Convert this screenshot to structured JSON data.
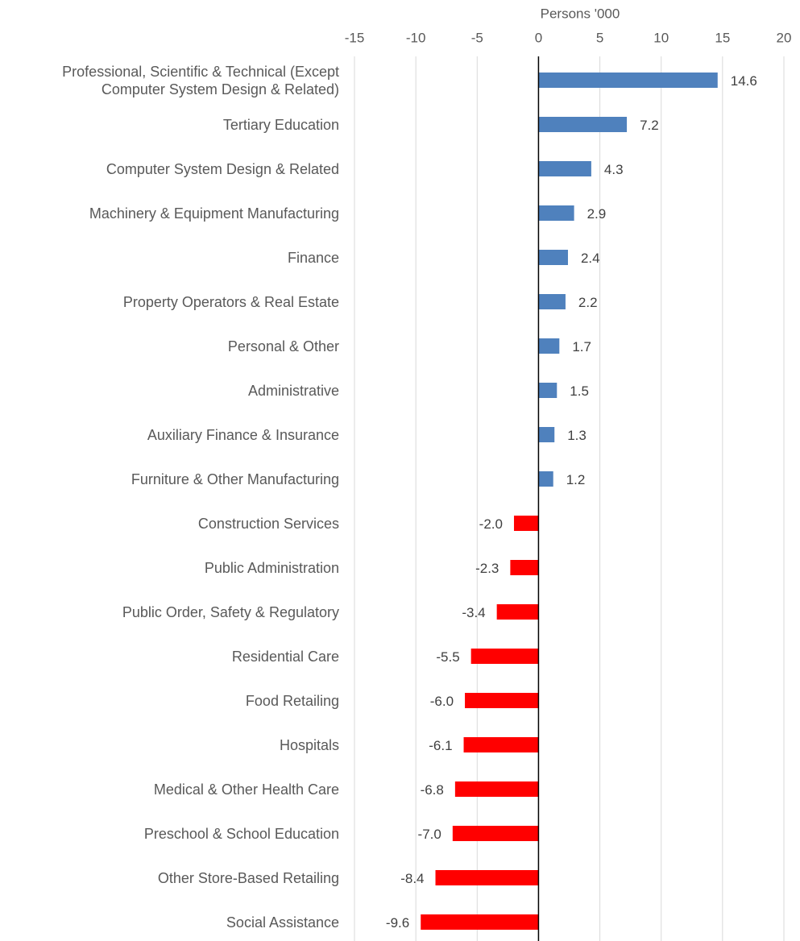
{
  "chart_data": {
    "type": "bar",
    "orientation": "horizontal",
    "x_axis_label": "Persons '000",
    "categories": [
      "Professional, Scientific & Technical (Except Computer System Design & Related)",
      "Tertiary Education",
      "Computer System Design & Related",
      "Machinery & Equipment Manufacturing",
      "Finance",
      "Property Operators & Real Estate",
      "Personal & Other",
      "Administrative",
      "Auxiliary Finance & Insurance",
      "Furniture & Other Manufacturing",
      "Construction Services",
      "Public Administration",
      "Public Order, Safety & Regulatory",
      "Residential Care",
      "Food Retailing",
      "Hospitals",
      "Medical & Other Health Care",
      "Preschool & School Education",
      "Other Store-Based Retailing",
      "Social Assistance"
    ],
    "values": [
      14.6,
      7.2,
      4.3,
      2.9,
      2.4,
      2.2,
      1.7,
      1.5,
      1.3,
      1.2,
      -2.0,
      -2.3,
      -3.4,
      -5.5,
      -6.0,
      -6.1,
      -6.8,
      -7.0,
      -8.4,
      -9.6
    ],
    "value_labels": [
      "14.6",
      "7.2",
      "4.3",
      "2.9",
      "2.4",
      "2.2",
      "1.7",
      "1.5",
      "1.3",
      "1.2",
      "-2.0",
      "-2.3",
      "-3.4",
      "-5.5",
      "-6.0",
      "-6.1",
      "-6.8",
      "-7.0",
      "-8.4",
      "-9.6"
    ],
    "colors": [
      "#4f81bd",
      "#4f81bd",
      "#4f81bd",
      "#4f81bd",
      "#4f81bd",
      "#4f81bd",
      "#4f81bd",
      "#4f81bd",
      "#4f81bd",
      "#4f81bd",
      "#ff0000",
      "#ff0000",
      "#ff0000",
      "#ff0000",
      "#ff0000",
      "#ff0000",
      "#ff0000",
      "#ff0000",
      "#ff0000",
      "#ff0000"
    ],
    "xlim": [
      -15,
      20
    ],
    "xticks": [
      -15,
      -10,
      -5,
      0,
      5,
      10,
      15,
      20
    ],
    "grid": true
  }
}
